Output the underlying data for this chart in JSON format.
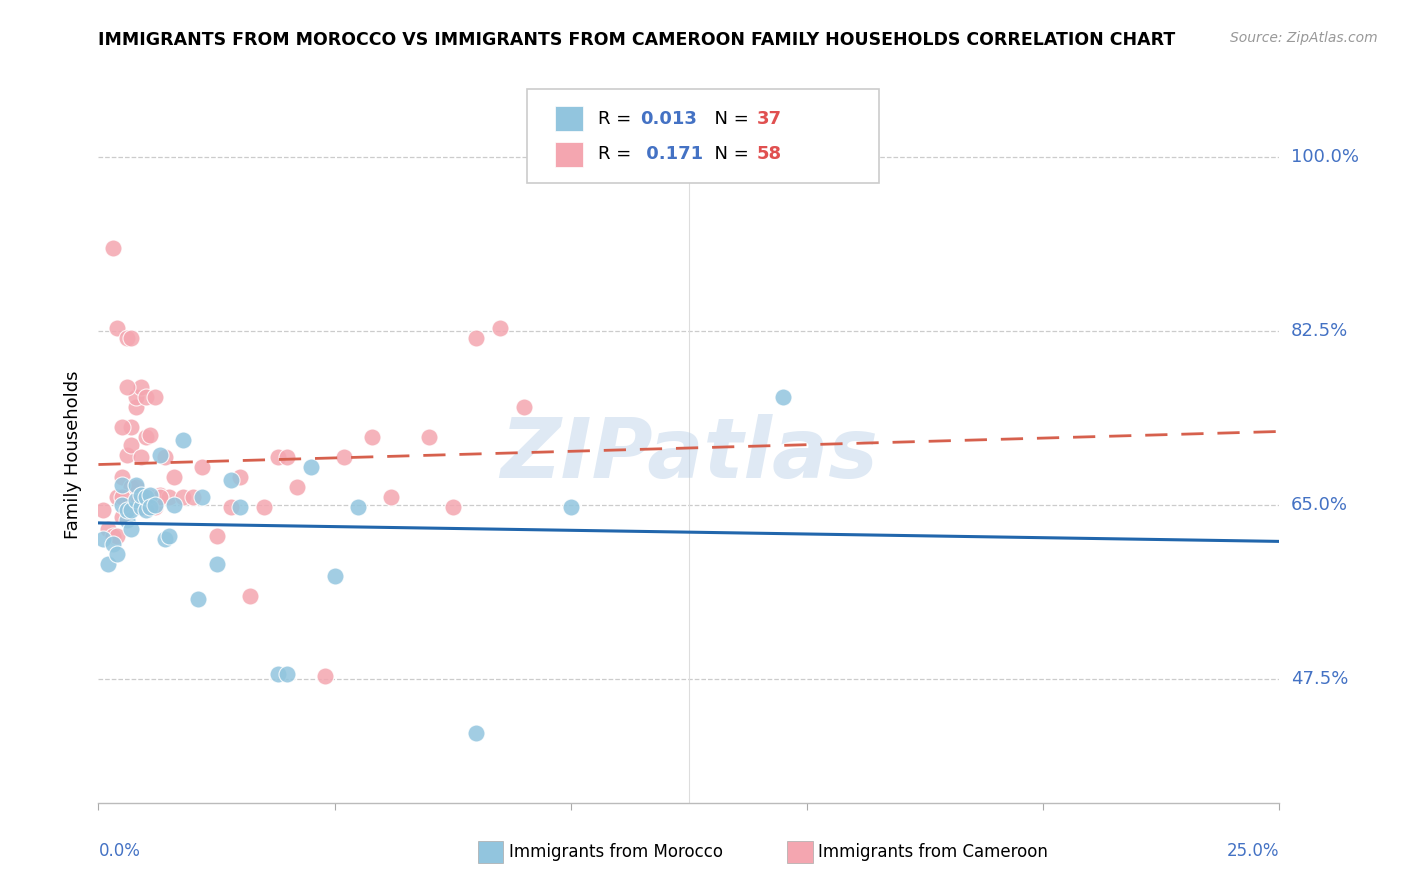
{
  "title": "IMMIGRANTS FROM MOROCCO VS IMMIGRANTS FROM CAMEROON FAMILY HOUSEHOLDS CORRELATION CHART",
  "source": "Source: ZipAtlas.com",
  "ylabel": "Family Households",
  "ytick_labels": [
    "100.0%",
    "82.5%",
    "65.0%",
    "47.5%"
  ],
  "ytick_values": [
    1.0,
    0.825,
    0.65,
    0.475
  ],
  "R_morocco": 0.013,
  "N_morocco": 37,
  "R_cameroon": 0.171,
  "N_cameroon": 58,
  "morocco_color": "#92c5de",
  "cameroon_color": "#f4a6b0",
  "morocco_line_color": "#2166ac",
  "cameroon_line_color": "#d6604d",
  "watermark": "ZIPatlas",
  "xlim": [
    0.0,
    0.25
  ],
  "ylim": [
    0.35,
    1.05
  ],
  "morocco_x": [
    0.001,
    0.002,
    0.003,
    0.004,
    0.005,
    0.005,
    0.006,
    0.006,
    0.007,
    0.007,
    0.008,
    0.008,
    0.009,
    0.009,
    0.01,
    0.01,
    0.011,
    0.011,
    0.012,
    0.013,
    0.014,
    0.015,
    0.016,
    0.018,
    0.021,
    0.022,
    0.025,
    0.028,
    0.03,
    0.038,
    0.04,
    0.045,
    0.05,
    0.055,
    0.08,
    0.1,
    0.145
  ],
  "morocco_y": [
    0.615,
    0.59,
    0.61,
    0.6,
    0.65,
    0.67,
    0.635,
    0.645,
    0.625,
    0.645,
    0.655,
    0.67,
    0.648,
    0.66,
    0.645,
    0.658,
    0.66,
    0.648,
    0.65,
    0.7,
    0.615,
    0.618,
    0.65,
    0.715,
    0.555,
    0.658,
    0.59,
    0.675,
    0.648,
    0.48,
    0.48,
    0.688,
    0.578,
    0.648,
    0.42,
    0.648,
    0.758
  ],
  "cameroon_x": [
    0.001,
    0.002,
    0.003,
    0.004,
    0.005,
    0.005,
    0.006,
    0.006,
    0.007,
    0.007,
    0.008,
    0.008,
    0.009,
    0.009,
    0.01,
    0.01,
    0.011,
    0.012,
    0.013,
    0.014,
    0.015,
    0.016,
    0.018,
    0.02,
    0.022,
    0.025,
    0.028,
    0.03,
    0.032,
    0.035,
    0.038,
    0.04,
    0.042,
    0.048,
    0.052,
    0.058,
    0.062,
    0.07,
    0.075,
    0.08,
    0.085,
    0.09,
    0.01,
    0.011,
    0.012,
    0.013,
    0.007,
    0.008,
    0.009,
    0.006,
    0.005,
    0.004,
    0.003,
    0.004,
    0.005,
    0.006,
    0.007,
    0.008
  ],
  "cameroon_y": [
    0.645,
    0.625,
    0.618,
    0.658,
    0.638,
    0.678,
    0.7,
    0.648,
    0.71,
    0.728,
    0.748,
    0.758,
    0.768,
    0.648,
    0.718,
    0.758,
    0.72,
    0.758,
    0.66,
    0.698,
    0.658,
    0.678,
    0.658,
    0.658,
    0.688,
    0.618,
    0.648,
    0.678,
    0.558,
    0.648,
    0.698,
    0.698,
    0.668,
    0.478,
    0.698,
    0.718,
    0.658,
    0.718,
    0.648,
    0.818,
    0.828,
    0.748,
    0.658,
    0.658,
    0.648,
    0.658,
    0.668,
    0.658,
    0.698,
    0.768,
    0.728,
    0.618,
    0.908,
    0.828,
    0.658,
    0.818,
    0.818,
    0.668
  ]
}
